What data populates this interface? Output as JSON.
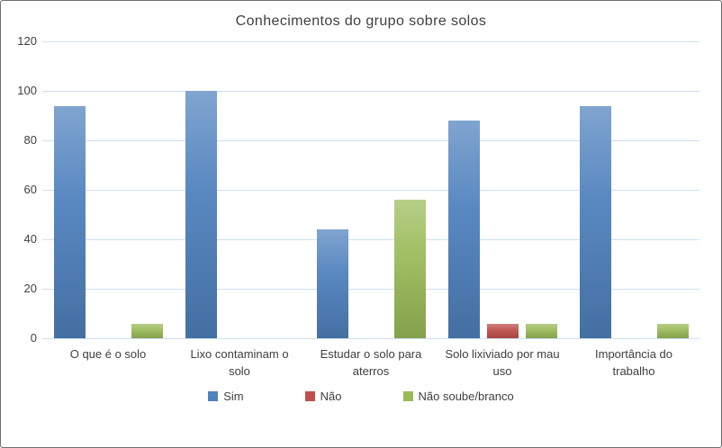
{
  "title": "Conhecimentos do grupo sobre solos",
  "colors": {
    "background": "#ffffff",
    "border": "#6e6e6e",
    "gridline": "#cfe0f2",
    "text": "#404040",
    "series_blue": "#4F81BD",
    "series_red": "#C0504D",
    "series_green": "#9BBB59"
  },
  "chart_data": {
    "type": "bar",
    "title": "Conhecimentos do grupo sobre solos",
    "categories": [
      "O que é o solo",
      "Lixo contaminam o solo",
      "Estudar o solo para aterros",
      "Solo lixiviado por mau uso",
      "Importância do trabalho"
    ],
    "series": [
      {
        "name": "Sim",
        "color": "#4F81BD",
        "values": [
          94,
          100,
          44,
          88,
          94
        ]
      },
      {
        "name": "Não",
        "color": "#C0504D",
        "values": [
          0,
          0,
          0,
          6,
          0
        ]
      },
      {
        "name": "Não soube/branco",
        "color": "#9BBB59",
        "values": [
          6,
          0,
          56,
          6,
          6
        ]
      }
    ],
    "xlabel": "",
    "ylabel": "",
    "ylim": [
      0,
      120
    ],
    "yticks": [
      0,
      20,
      40,
      60,
      80,
      100,
      120
    ],
    "grid": true,
    "legend_position": "bottom"
  }
}
